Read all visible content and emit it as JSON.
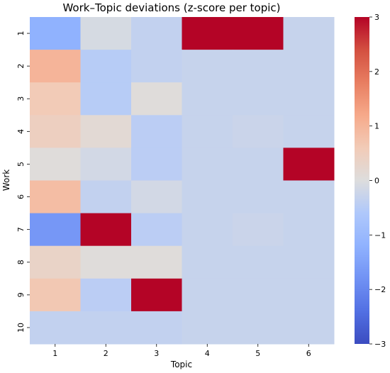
{
  "chart_data": {
    "type": "heatmap",
    "title": "Work–Topic deviations (z-score per topic)",
    "xlabel": "Topic",
    "ylabel": "Work",
    "x_categories": [
      "1",
      "2",
      "3",
      "4",
      "5",
      "6"
    ],
    "y_categories": [
      "1",
      "2",
      "3",
      "4",
      "5",
      "6",
      "7",
      "8",
      "9",
      "10"
    ],
    "values": [
      [
        -1.2,
        -0.1,
        -0.35,
        3.0,
        3.0,
        -0.3
      ],
      [
        1.0,
        -0.5,
        -0.35,
        -0.3,
        -0.3,
        -0.3
      ],
      [
        0.6,
        -0.5,
        0.05,
        -0.3,
        -0.3,
        -0.3
      ],
      [
        0.45,
        0.15,
        -0.45,
        -0.3,
        -0.25,
        -0.3
      ],
      [
        0.05,
        -0.15,
        -0.45,
        -0.3,
        -0.3,
        3.0
      ],
      [
        0.85,
        -0.35,
        -0.15,
        -0.3,
        -0.3,
        -0.3
      ],
      [
        -1.7,
        3.0,
        -0.45,
        -0.3,
        -0.25,
        -0.3
      ],
      [
        0.35,
        0.05,
        0.05,
        -0.3,
        -0.3,
        -0.3
      ],
      [
        0.65,
        -0.45,
        3.0,
        -0.3,
        -0.3,
        -0.3
      ],
      [
        -0.35,
        -0.35,
        -0.35,
        -0.3,
        -0.3,
        -0.3
      ]
    ],
    "colormap": "coolwarm",
    "vmin": -3,
    "vmax": 3,
    "colorbar": {
      "ticks": [
        3,
        2,
        1,
        0,
        -1,
        -2,
        -3
      ],
      "tick_labels": [
        "3",
        "2",
        "1",
        "0",
        "−1",
        "−2",
        "−3"
      ]
    },
    "grid": false,
    "legend": "none"
  }
}
